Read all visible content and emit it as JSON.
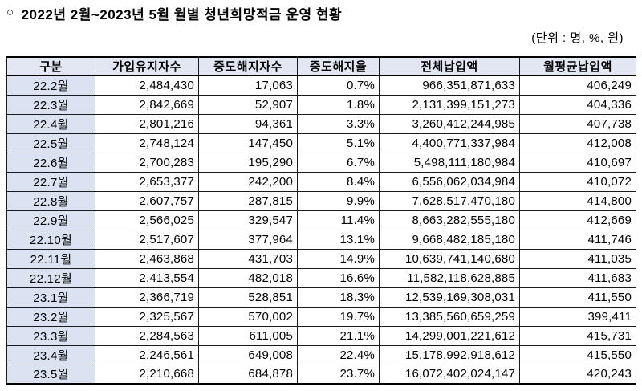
{
  "title": {
    "bullet": "○",
    "text": "2022년 2월~2023년 5월 월별 청년희망적금 운영 현황"
  },
  "unit_note": "(단위 : 명, %, 원)",
  "colors": {
    "header_bg": "#e2e7f3",
    "month_col_bg": "#dbe2f1",
    "border": "#000000",
    "text": "#000000",
    "page_bg": "#ffffff"
  },
  "table": {
    "columns": [
      "구분",
      "가입유지자수",
      "중도해지자수",
      "중도해지율",
      "전체납입액",
      "월평균납입액"
    ],
    "rows": [
      [
        "22.2월",
        "2,484,430",
        "17,063",
        "0.7%",
        "966,351,871,633",
        "406,249"
      ],
      [
        "22.3월",
        "2,842,669",
        "52,907",
        "1.8%",
        "2,131,399,151,273",
        "404,336"
      ],
      [
        "22.4월",
        "2,801,216",
        "94,361",
        "3.3%",
        "3,260,412,244,985",
        "407,738"
      ],
      [
        "22.5월",
        "2,748,124",
        "147,450",
        "5.1%",
        "4,400,771,337,984",
        "412,008"
      ],
      [
        "22.6월",
        "2,700,283",
        "195,290",
        "6.7%",
        "5,498,111,180,984",
        "410,697"
      ],
      [
        "22.7월",
        "2,653,377",
        "242,200",
        "8.4%",
        "6,556,062,034,984",
        "410,072"
      ],
      [
        "22.8월",
        "2,607,757",
        "287,815",
        "9.9%",
        "7,628,517,470,180",
        "414,800"
      ],
      [
        "22.9월",
        "2,566,025",
        "329,547",
        "11.4%",
        "8,663,282,555,180",
        "412,669"
      ],
      [
        "22.10월",
        "2,517,607",
        "377,964",
        "13.1%",
        "9,668,482,185,180",
        "411,746"
      ],
      [
        "22.11월",
        "2,463,868",
        "431,703",
        "14.9%",
        "10,639,741,140,680",
        "411,035"
      ],
      [
        "22.12월",
        "2,413,554",
        "482,018",
        "16.6%",
        "11,582,118,628,885",
        "411,683"
      ],
      [
        "23.1월",
        "2,366,719",
        "528,851",
        "18.3%",
        "12,539,169,308,031",
        "411,550"
      ],
      [
        "23.2월",
        "2,325,567",
        "570,002",
        "19.7%",
        "13,385,560,659,259",
        "399,411"
      ],
      [
        "23.3월",
        "2,284,563",
        "611,005",
        "21.1%",
        "14,299,001,221,612",
        "415,731"
      ],
      [
        "23.4월",
        "2,246,561",
        "649,008",
        "22.4%",
        "15,178,992,918,612",
        "415,550"
      ],
      [
        "23.5월",
        "2,210,668",
        "684,878",
        "23.7%",
        "16,072,402,024,147",
        "420,243"
      ]
    ]
  }
}
